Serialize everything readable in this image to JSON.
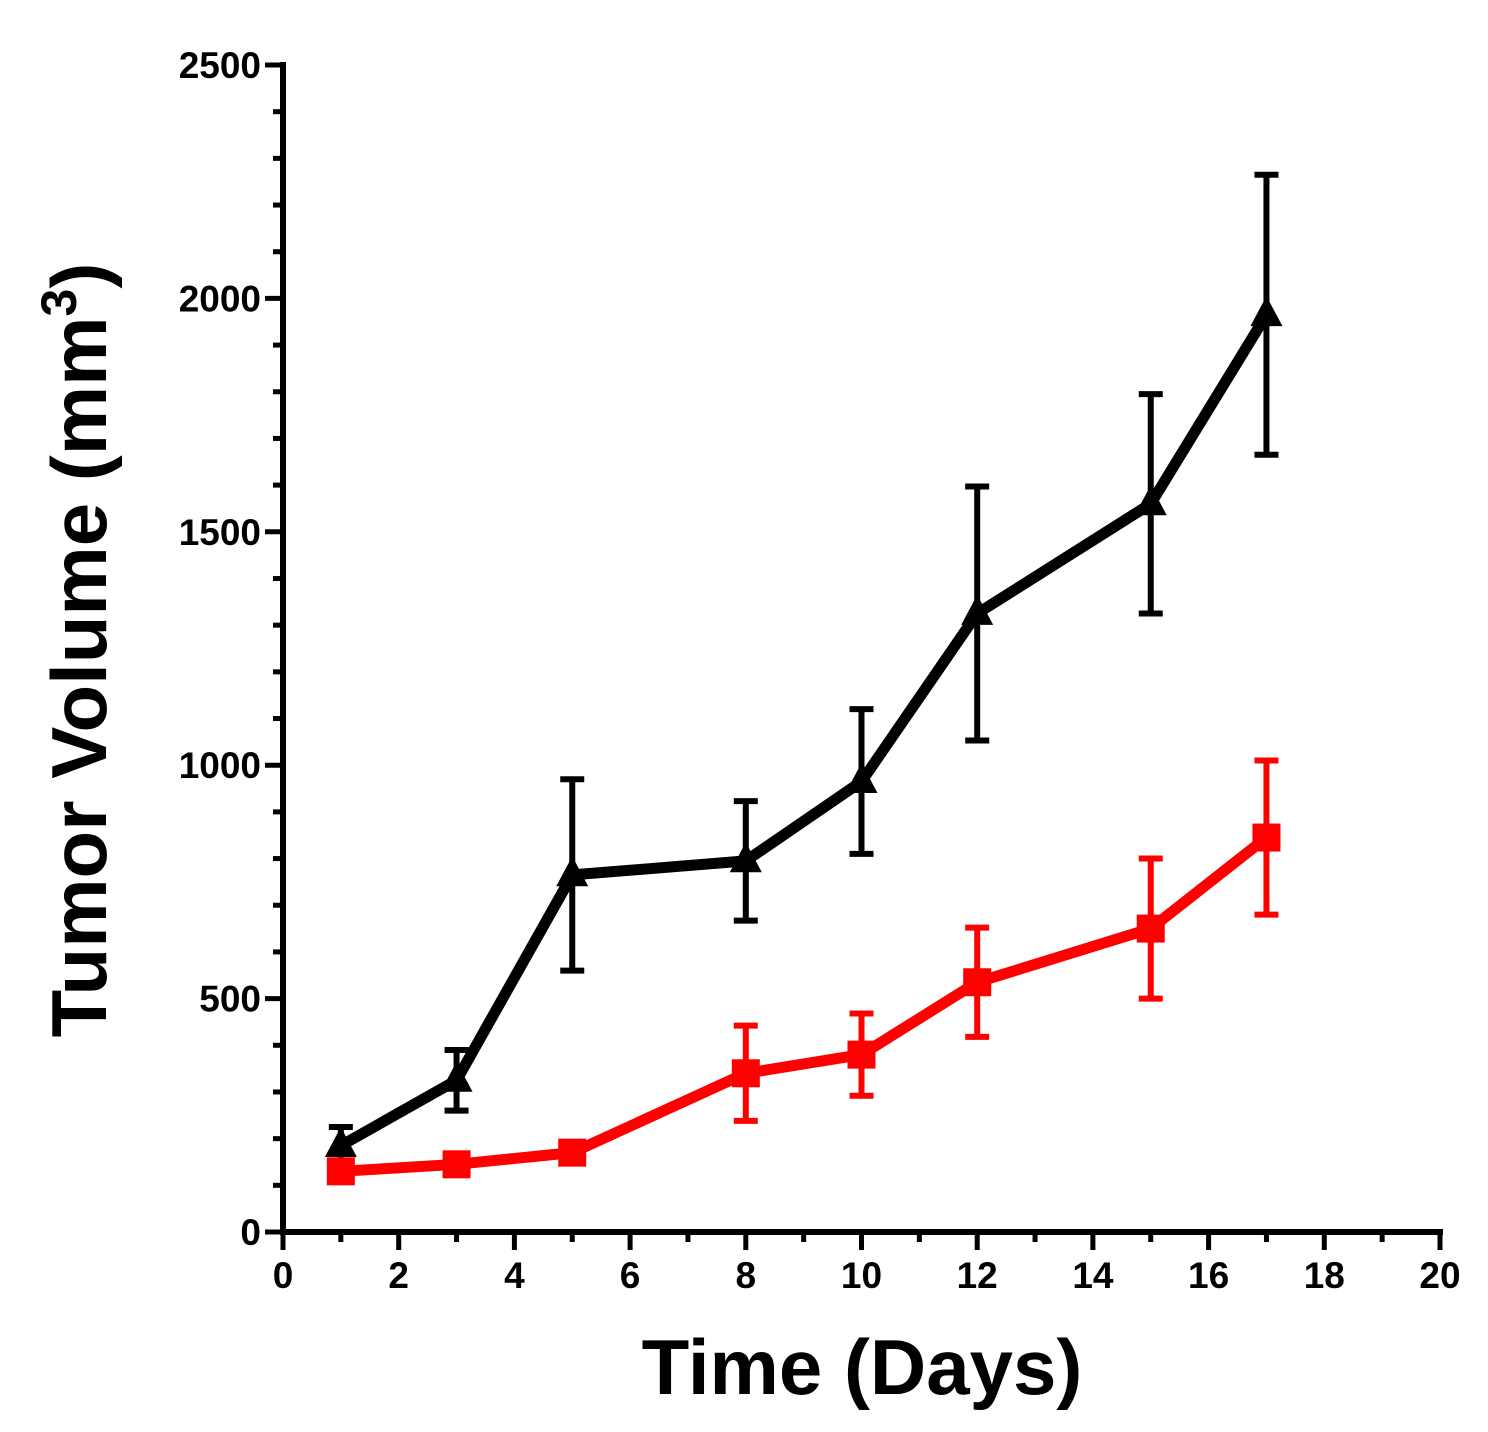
{
  "chart_data": {
    "type": "line",
    "title": "",
    "xlabel": "Time (Days)",
    "ylabel": {
      "main": "Tumor Volume (mm",
      "superscript": "3",
      "close": ")"
    },
    "xlim": [
      0,
      20
    ],
    "ylim": [
      0,
      2500
    ],
    "xticks": [
      "0",
      "2",
      "4",
      "6",
      "8",
      "10",
      "12",
      "14",
      "16",
      "18",
      "20"
    ],
    "yticks": [
      "0",
      "500",
      "1000",
      "1500",
      "2000",
      "2500"
    ],
    "grid": false,
    "legend": "none",
    "series": [
      {
        "name": "black-triangle-series",
        "color": "#000000",
        "marker": "triangle",
        "x": [
          1,
          3,
          5,
          8,
          10,
          12,
          15,
          17
        ],
        "y": [
          185,
          325,
          765,
          795,
          965,
          1325,
          1560,
          1965
        ],
        "err": [
          40,
          65,
          205,
          128,
          155,
          272,
          235,
          300
        ]
      },
      {
        "name": "red-square-series",
        "color": "#ff0000",
        "marker": "square",
        "x": [
          1,
          3,
          5,
          8,
          10,
          12,
          15,
          17
        ],
        "y": [
          130,
          145,
          170,
          340,
          380,
          535,
          650,
          845
        ],
        "err": [
          0,
          0,
          0,
          102,
          88,
          117,
          150,
          165
        ]
      }
    ]
  }
}
